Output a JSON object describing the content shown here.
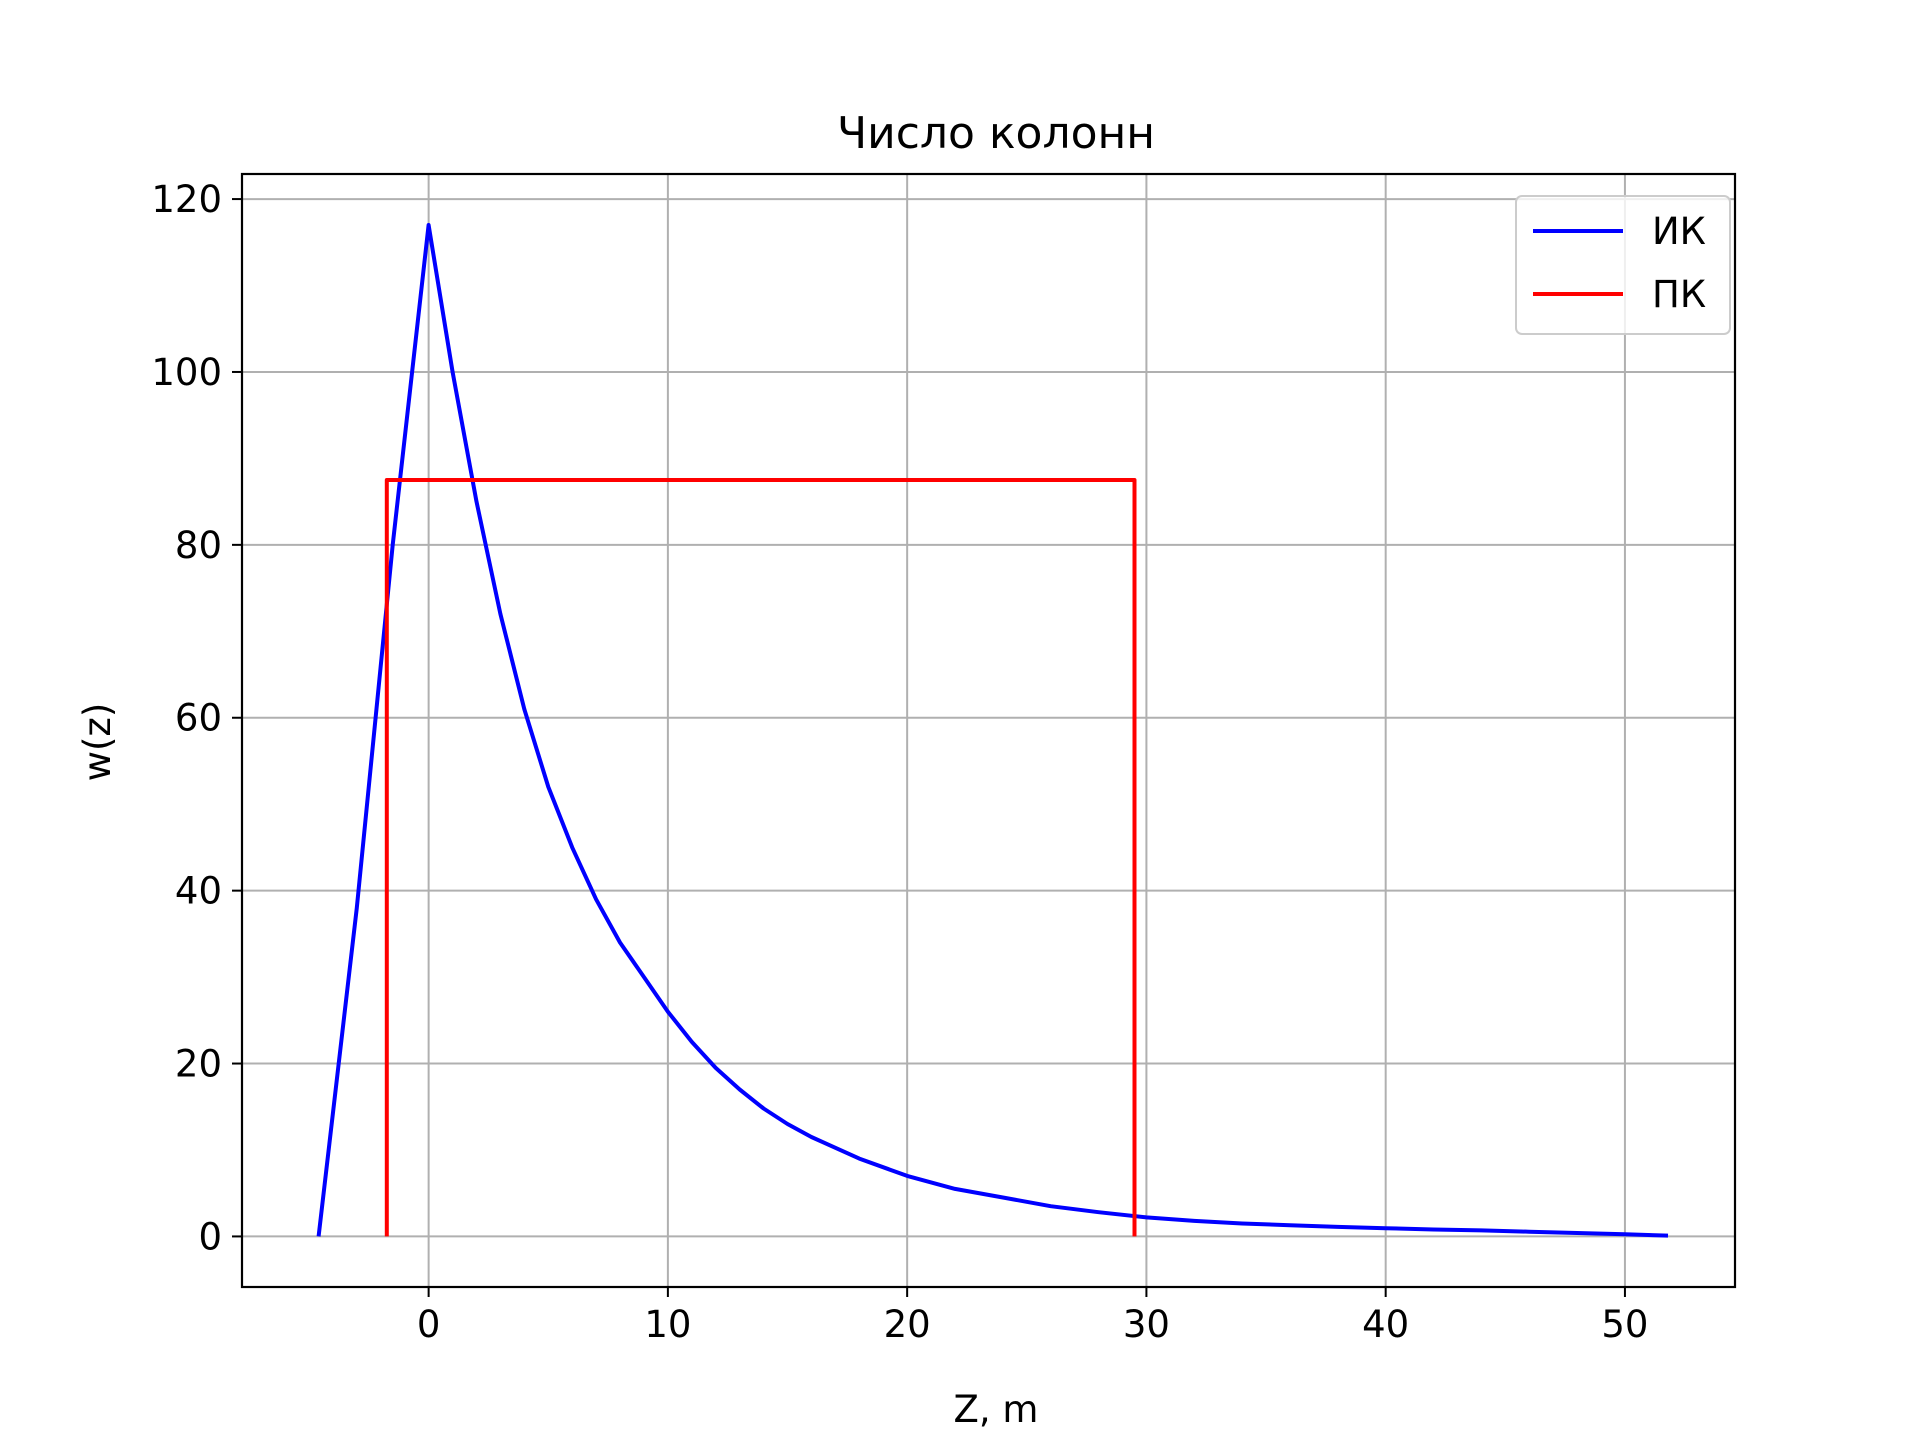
{
  "chart_data": {
    "type": "line",
    "title": "Число колонн",
    "xlabel": "Z, m",
    "ylabel": "w(z)",
    "xlim": [
      -7.8,
      54.6
    ],
    "ylim": [
      -5.85,
      122.9
    ],
    "xticks": [
      0,
      10,
      20,
      30,
      40,
      50
    ],
    "yticks": [
      0,
      20,
      40,
      60,
      80,
      100,
      120
    ],
    "grid": true,
    "legend_position": "top-right",
    "series": [
      {
        "name": "ИК",
        "color": "#0000ff",
        "x": [
          -4.6,
          -3,
          -1.5,
          0,
          1,
          2,
          3,
          4,
          5,
          6,
          7,
          8,
          9,
          10,
          11,
          12,
          13,
          14,
          15,
          16,
          18,
          20,
          22,
          24,
          26,
          28,
          30,
          32,
          34,
          36,
          38,
          40,
          42,
          44,
          46,
          48,
          50,
          51.8
        ],
        "y": [
          0,
          38,
          80,
          117,
          100,
          85,
          72,
          61,
          52,
          45,
          39,
          34,
          30,
          26,
          22.5,
          19.5,
          17,
          14.8,
          13,
          11.5,
          9,
          7,
          5.5,
          4.5,
          3.5,
          2.8,
          2.2,
          1.8,
          1.5,
          1.3,
          1.1,
          0.95,
          0.8,
          0.7,
          0.55,
          0.4,
          0.25,
          0.1
        ]
      },
      {
        "name": "ПК",
        "color": "#ff0000",
        "x": [
          -1.75,
          -1.75,
          29.5,
          29.5
        ],
        "y": [
          0,
          87.5,
          87.5,
          0
        ]
      }
    ]
  }
}
